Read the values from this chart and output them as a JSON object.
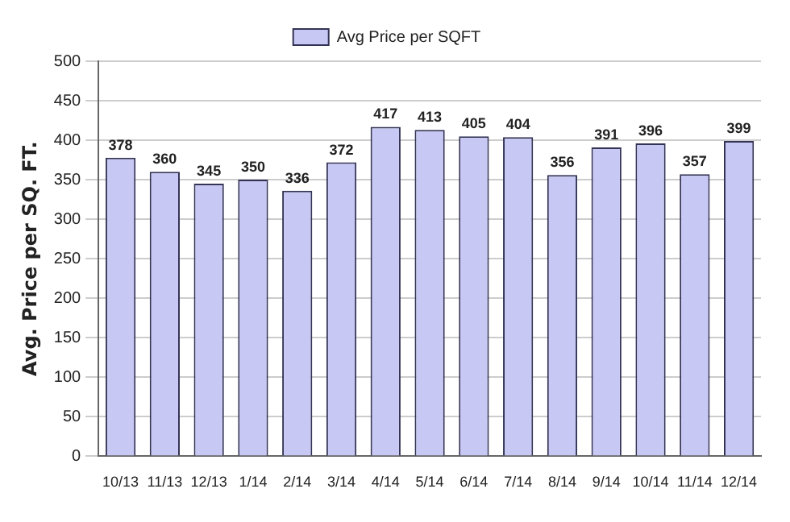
{
  "chart_data": {
    "type": "bar",
    "ylabel": "Avg. Price per SQ. FT.",
    "categories": [
      "10/13",
      "11/13",
      "12/13",
      "1/14",
      "2/14",
      "3/14",
      "4/14",
      "5/14",
      "6/14",
      "7/14",
      "8/14",
      "9/14",
      "10/14",
      "11/14",
      "12/14"
    ],
    "series": [
      {
        "name": "Avg Price per SQFT",
        "color": "#c8c8f4",
        "values": [
          378,
          360,
          345,
          350,
          336,
          372,
          417,
          413,
          405,
          404,
          356,
          391,
          396,
          357,
          399
        ]
      }
    ],
    "ylim": [
      0,
      500
    ],
    "yticks": [
      0,
      50,
      100,
      150,
      200,
      250,
      300,
      350,
      400,
      450,
      500
    ],
    "grid": "y",
    "legend": "top",
    "data_labels": true
  }
}
